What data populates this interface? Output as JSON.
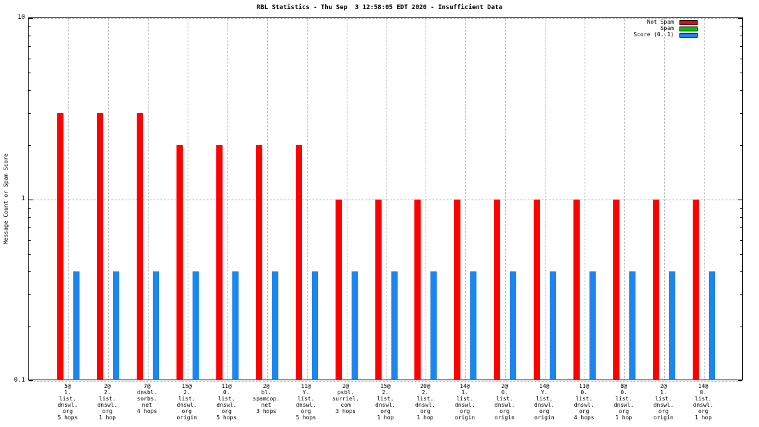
{
  "chart_data": {
    "type": "bar",
    "title": "RBL Statistics - Thu Sep  3 12:58:05 EDT 2020 - Insufficient Data",
    "ylabel": "Message Count or Spam Score",
    "yscale": "log",
    "ylim": [
      0.1,
      10
    ],
    "yticks": [
      0.1,
      1,
      10
    ],
    "ytick_labels": [
      "0.1",
      "1",
      "10"
    ],
    "grid": true,
    "legend_position": "top-right",
    "categories": [
      [
        "5@",
        "1.",
        "list.",
        "dnswl.",
        "org",
        "5 hops"
      ],
      [
        "2@",
        "2.",
        "list.",
        "dnswl.",
        "org",
        "1 hop"
      ],
      [
        "7@",
        "dnsbl.",
        "sorbs.",
        "net",
        "4 hops"
      ],
      [
        "15@",
        "2.",
        "list.",
        "dnswl.",
        "org",
        "origin"
      ],
      [
        "11@",
        "0.",
        "list.",
        "dnswl.",
        "org",
        "5 hops"
      ],
      [
        "2@",
        "bl.",
        "spamcop.",
        "net",
        "3 hops"
      ],
      [
        "11@",
        "Y.",
        "list.",
        "dnswl.",
        "org",
        "5 hops"
      ],
      [
        "2@",
        "psbl.",
        "surriel.",
        "com",
        "3 hops"
      ],
      [
        "15@",
        "2.",
        "list.",
        "dnswl.",
        "org",
        "1 hop"
      ],
      [
        "20@",
        "2.",
        "list.",
        "dnswl.",
        "org",
        "1 hop"
      ],
      [
        "14@",
        "1.",
        "list.",
        "dnswl.",
        "org",
        "origin"
      ],
      [
        "2@",
        "0.",
        "list.",
        "dnswl.",
        "org",
        "origin"
      ],
      [
        "14@",
        "Y.",
        "list.",
        "dnswl.",
        "org",
        "origin"
      ],
      [
        "11@",
        "0.",
        "list.",
        "dnswl.",
        "org",
        "4 hops"
      ],
      [
        "8@",
        "0.",
        "list.",
        "dnswl.",
        "org",
        "1 hop"
      ],
      [
        "2@",
        "1.",
        "list.",
        "dnswl.",
        "org",
        "origin"
      ],
      [
        "14@",
        "0.",
        "list.",
        "dnswl.",
        "org",
        "1 hop"
      ]
    ],
    "series": [
      {
        "name": "Not Spam",
        "color": "#ff0000",
        "values": [
          3,
          3,
          3,
          2,
          2,
          2,
          2,
          1,
          1,
          1,
          1,
          1,
          1,
          1,
          1,
          1,
          1
        ]
      },
      {
        "name": "Spam",
        "color": "#00c000",
        "values": [
          0,
          0,
          0,
          0,
          0,
          0,
          0,
          0,
          0,
          0,
          0,
          0,
          0,
          0,
          0,
          0,
          0
        ]
      },
      {
        "name": "Score (0..1)",
        "color": "#1c86ee",
        "values": [
          0.4,
          0.4,
          0.4,
          0.4,
          0.4,
          0.4,
          0.4,
          0.4,
          0.4,
          0.4,
          0.4,
          0.4,
          0.4,
          0.4,
          0.4,
          0.4,
          0.4
        ]
      }
    ]
  }
}
